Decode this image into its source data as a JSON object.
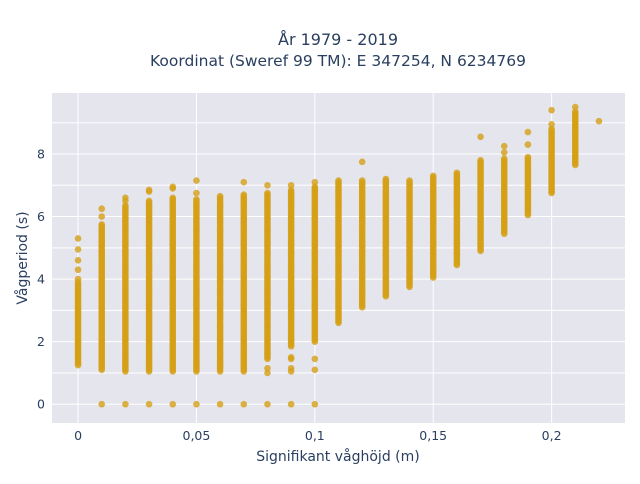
{
  "chart_data": {
    "type": "scatter",
    "title_line1": "År 1979 - 2019",
    "title_line2": "Koordinat (Sweref 99 TM): E 347254, N 6234769",
    "xlabel": "Signifikant våghöjd (m)",
    "ylabel": "Vågperiod (s)",
    "xlim": [
      -0.011,
      0.231
    ],
    "ylim": [
      -0.6,
      9.95
    ],
    "xticks": [
      0,
      0.05,
      0.1,
      0.15,
      0.2
    ],
    "xtick_labels": [
      "0",
      "0,05",
      "0,1",
      "0,15",
      "0,2"
    ],
    "yticks": [
      0,
      2,
      4,
      6,
      8
    ],
    "ytick_labels": [
      "0",
      "2",
      "4",
      "6",
      "8"
    ],
    "grid": true,
    "marker_color": "#d4a017",
    "plot_background": "#e5e5ee",
    "columns": [
      {
        "x": 0.0,
        "ranges": [
          [
            1.25,
            3.9
          ]
        ],
        "points": [
          4.0,
          4.3,
          4.6,
          4.95,
          5.3
        ]
      },
      {
        "x": 0.01,
        "ranges": [
          [
            1.1,
            5.75
          ]
        ],
        "points": [
          0.0,
          6.0,
          6.25
        ]
      },
      {
        "x": 0.02,
        "ranges": [
          [
            1.05,
            6.35
          ]
        ],
        "points": [
          0.0,
          6.5,
          6.6
        ]
      },
      {
        "x": 0.03,
        "ranges": [
          [
            1.05,
            6.5
          ]
        ],
        "points": [
          0.0,
          6.8,
          6.85
        ]
      },
      {
        "x": 0.04,
        "ranges": [
          [
            1.05,
            6.6
          ]
        ],
        "points": [
          0.0,
          6.9,
          6.95
        ]
      },
      {
        "x": 0.05,
        "ranges": [
          [
            1.05,
            6.55
          ]
        ],
        "points": [
          0.0,
          6.75,
          7.15
        ]
      },
      {
        "x": 0.06,
        "ranges": [
          [
            1.05,
            6.65
          ]
        ],
        "points": [
          0.0
        ]
      },
      {
        "x": 0.07,
        "ranges": [
          [
            1.05,
            6.7
          ]
        ],
        "points": [
          0.0,
          7.1
        ]
      },
      {
        "x": 0.08,
        "ranges": [
          [
            1.45,
            6.75
          ]
        ],
        "points": [
          0.0,
          1.0,
          1.15,
          7.0
        ]
      },
      {
        "x": 0.09,
        "ranges": [
          [
            1.85,
            6.85
          ]
        ],
        "points": [
          0.0,
          1.05,
          1.15,
          1.45,
          1.5,
          7.0
        ]
      },
      {
        "x": 0.1,
        "ranges": [
          [
            2.0,
            6.95
          ]
        ],
        "points": [
          0.0,
          1.1,
          1.45,
          7.1
        ]
      },
      {
        "x": 0.11,
        "ranges": [
          [
            2.6,
            7.15
          ]
        ],
        "points": []
      },
      {
        "x": 0.12,
        "ranges": [
          [
            3.1,
            7.15
          ]
        ],
        "points": [
          7.75
        ]
      },
      {
        "x": 0.13,
        "ranges": [
          [
            3.45,
            7.2
          ]
        ],
        "points": []
      },
      {
        "x": 0.14,
        "ranges": [
          [
            3.75,
            7.15
          ]
        ],
        "points": []
      },
      {
        "x": 0.15,
        "ranges": [
          [
            4.05,
            7.3
          ]
        ],
        "points": []
      },
      {
        "x": 0.16,
        "ranges": [
          [
            4.45,
            7.4
          ]
        ],
        "points": []
      },
      {
        "x": 0.17,
        "ranges": [
          [
            4.9,
            7.8
          ]
        ],
        "points": [
          8.55
        ]
      },
      {
        "x": 0.18,
        "ranges": [
          [
            5.45,
            7.85
          ]
        ],
        "points": [
          8.05,
          8.25
        ]
      },
      {
        "x": 0.19,
        "ranges": [
          [
            6.05,
            7.9
          ]
        ],
        "points": [
          8.3,
          8.7
        ]
      },
      {
        "x": 0.2,
        "ranges": [
          [
            6.75,
            8.8
          ]
        ],
        "points": [
          8.95,
          9.4
        ]
      },
      {
        "x": 0.21,
        "ranges": [
          [
            7.7,
            9.35
          ]
        ],
        "points": [
          7.65,
          9.5
        ]
      },
      {
        "x": 0.22,
        "ranges": [],
        "points": [
          9.05
        ]
      }
    ]
  }
}
